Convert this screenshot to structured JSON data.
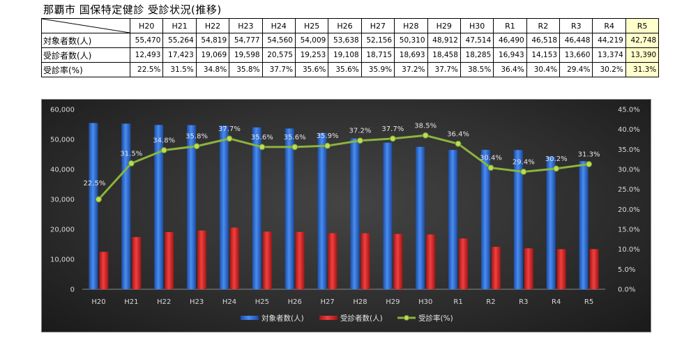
{
  "title": "那覇市 国保特定健診 受診状況(推移)",
  "table": {
    "headers": [
      "H20",
      "H21",
      "H22",
      "H23",
      "H24",
      "H25",
      "H26",
      "H27",
      "H28",
      "H29",
      "H30",
      "R1",
      "R2",
      "R3",
      "R4",
      "R5"
    ],
    "rows": [
      {
        "label": "対象者数(人)",
        "cells": [
          "55,470",
          "55,264",
          "54,819",
          "54,777",
          "54,560",
          "54,009",
          "53,638",
          "52,156",
          "50,310",
          "48,912",
          "47,514",
          "46,490",
          "46,518",
          "46,448",
          "44,219",
          "42,748"
        ]
      },
      {
        "label": "受診者数(人)",
        "cells": [
          "12,493",
          "17,423",
          "19,069",
          "19,598",
          "20,575",
          "19,253",
          "19,108",
          "18,715",
          "18,693",
          "18,458",
          "18,285",
          "16,943",
          "14,153",
          "13,660",
          "13,374",
          "13,390"
        ]
      },
      {
        "label": "受診率(%)",
        "cells": [
          "22.5%",
          "31.5%",
          "34.8%",
          "35.8%",
          "37.7%",
          "35.6%",
          "35.6%",
          "35.9%",
          "37.2%",
          "37.7%",
          "38.5%",
          "36.4%",
          "30.4%",
          "29.4%",
          "30.2%",
          "31.3%"
        ]
      }
    ],
    "highlight_column": "R5",
    "highlight_color": "#ffffcc"
  },
  "chart_data": {
    "type": "bar",
    "categories": [
      "H20",
      "H21",
      "H22",
      "H23",
      "H24",
      "H25",
      "H26",
      "H27",
      "H28",
      "H29",
      "H30",
      "R1",
      "R2",
      "R3",
      "R4",
      "R5"
    ],
    "series": [
      {
        "name": "対象者数(人)",
        "kind": "bar",
        "axis": "left",
        "color": "#2f6fd6",
        "values": [
          55470,
          55264,
          54819,
          54777,
          54560,
          54009,
          53638,
          52156,
          50310,
          48912,
          47514,
          46490,
          46518,
          46448,
          44219,
          42748
        ]
      },
      {
        "name": "受診者数(人)",
        "kind": "bar",
        "axis": "left",
        "color": "#e02b2b",
        "values": [
          12493,
          17423,
          19069,
          19598,
          20575,
          19253,
          19108,
          18715,
          18693,
          18458,
          18285,
          16943,
          14153,
          13660,
          13374,
          13390
        ]
      },
      {
        "name": "受診率(%)",
        "kind": "line",
        "axis": "right",
        "color": "#8cb43c",
        "values": [
          22.5,
          31.5,
          34.8,
          35.8,
          37.7,
          35.6,
          35.6,
          35.9,
          37.2,
          37.7,
          38.5,
          36.4,
          30.4,
          29.4,
          30.2,
          31.3
        ],
        "labels": [
          "22.5%",
          "31.5%",
          "34.8%",
          "35.8%",
          "37.7%",
          "35.6%",
          "35.6%",
          "35.9%",
          "37.2%",
          "37.7%",
          "38.5%",
          "36.4%",
          "30.4%",
          "29.4%",
          "30.2%",
          "31.3%"
        ]
      }
    ],
    "y_left": {
      "min": 0,
      "max": 60000,
      "step": 10000,
      "tick_labels": [
        "0",
        "10,000",
        "20,000",
        "30,000",
        "40,000",
        "50,000",
        "60,000"
      ]
    },
    "y_right": {
      "min": 0,
      "max": 45,
      "step": 5,
      "tick_labels": [
        "0.0%",
        "5.0%",
        "10.0%",
        "15.0%",
        "20.0%",
        "25.0%",
        "30.0%",
        "35.0%",
        "40.0%",
        "45.0%"
      ]
    },
    "grid": false,
    "legend_position": "bottom"
  }
}
